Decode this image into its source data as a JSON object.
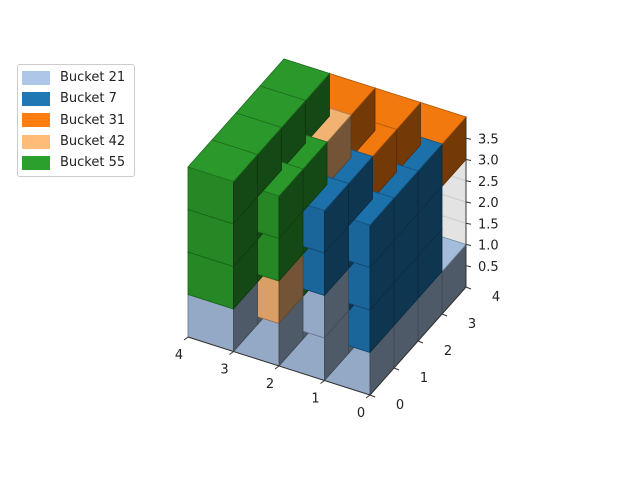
{
  "chart_data": {
    "type": "voxel",
    "title": "",
    "xlabel": "",
    "ylabel": "",
    "zlabel": "",
    "x_ticks": [
      "0",
      "1",
      "2",
      "3",
      "4"
    ],
    "y_ticks": [
      "0",
      "1",
      "2",
      "3",
      "4"
    ],
    "z_ticks": [
      "0.5",
      "1.0",
      "1.5",
      "2.0",
      "2.5",
      "3.0",
      "3.5"
    ],
    "xlim": [
      0,
      4
    ],
    "ylim": [
      0,
      4
    ],
    "zlim": [
      0,
      4
    ],
    "grid": true,
    "legend_position": "top-left",
    "legend": [
      {
        "label": "Bucket 21",
        "color": "#aec7e8"
      },
      {
        "label": "Bucket 7",
        "color": "#1f77b4"
      },
      {
        "label": "Bucket 31",
        "color": "#ff7f0e"
      },
      {
        "label": "Bucket 42",
        "color": "#ffbb78"
      },
      {
        "label": "Bucket 55",
        "color": "#2ca02c"
      }
    ],
    "voxels": [
      {
        "x": 0,
        "y": 0,
        "z": 0,
        "bucket": "Bucket 21"
      },
      {
        "x": 1,
        "y": 0,
        "z": 0,
        "bucket": "Bucket 21"
      },
      {
        "x": 2,
        "y": 0,
        "z": 0,
        "bucket": "Bucket 21"
      },
      {
        "x": 3,
        "y": 0,
        "z": 0,
        "bucket": "Bucket 21"
      },
      {
        "x": 3,
        "y": 1,
        "z": 0,
        "bucket": "Bucket 21"
      },
      {
        "x": 0,
        "y": 1,
        "z": 0,
        "bucket": "Bucket 21"
      },
      {
        "x": 1,
        "y": 1,
        "z": 0,
        "bucket": "Bucket 21"
      },
      {
        "x": 2,
        "y": 1,
        "z": 0,
        "bucket": "Bucket 21"
      },
      {
        "x": 0,
        "y": 2,
        "z": 0,
        "bucket": "Bucket 21"
      },
      {
        "x": 1,
        "y": 2,
        "z": 0,
        "bucket": "Bucket 21"
      },
      {
        "x": 0,
        "y": 3,
        "z": 0,
        "bucket": "Bucket 21"
      },
      {
        "x": 1,
        "y": 3,
        "z": 0,
        "bucket": "Bucket 21"
      },
      {
        "x": 1,
        "y": 0,
        "z": 1,
        "bucket": "Bucket 21"
      },
      {
        "x": 3,
        "y": 2,
        "z": 0,
        "bucket": "Bucket 55"
      },
      {
        "x": 3,
        "y": 3,
        "z": 0,
        "bucket": "Bucket 42"
      },
      {
        "x": 3,
        "y": 3,
        "z": 1,
        "bucket": "Bucket 42"
      },
      {
        "x": 3,
        "y": 2,
        "z": 1,
        "bucket": "Bucket 42"
      },
      {
        "x": 3,
        "y": 3,
        "z": 2,
        "bucket": "Bucket 42"
      },
      {
        "x": 2,
        "y": 0,
        "z": 1,
        "bucket": "Bucket 42"
      },
      {
        "x": 0,
        "y": 0,
        "z": 1,
        "bucket": "Bucket 7"
      },
      {
        "x": 0,
        "y": 0,
        "z": 2,
        "bucket": "Bucket 7"
      },
      {
        "x": 0,
        "y": 0,
        "z": 3,
        "bucket": "Bucket 7"
      },
      {
        "x": 1,
        "y": 0,
        "z": 2,
        "bucket": "Bucket 7"
      },
      {
        "x": 1,
        "y": 0,
        "z": 3,
        "bucket": "Bucket 7"
      },
      {
        "x": 0,
        "y": 1,
        "z": 3,
        "bucket": "Bucket 7"
      },
      {
        "x": 0,
        "y": 2,
        "z": 3,
        "bucket": "Bucket 7"
      },
      {
        "x": 1,
        "y": 1,
        "z": 3,
        "bucket": "Bucket 7"
      },
      {
        "x": 0,
        "y": 1,
        "z": 1,
        "bucket": "Bucket 7"
      },
      {
        "x": 0,
        "y": 1,
        "z": 2,
        "bucket": "Bucket 7"
      },
      {
        "x": 1,
        "y": 1,
        "z": 1,
        "bucket": "Bucket 7"
      },
      {
        "x": 1,
        "y": 1,
        "z": 2,
        "bucket": "Bucket 7"
      },
      {
        "x": 0,
        "y": 2,
        "z": 1,
        "bucket": "Bucket 7"
      },
      {
        "x": 0,
        "y": 2,
        "z": 2,
        "bucket": "Bucket 7"
      },
      {
        "x": 0,
        "y": 3,
        "z": 3,
        "bucket": "Bucket 31"
      },
      {
        "x": 1,
        "y": 3,
        "z": 3,
        "bucket": "Bucket 31"
      },
      {
        "x": 1,
        "y": 2,
        "z": 3,
        "bucket": "Bucket 31"
      },
      {
        "x": 2,
        "y": 3,
        "z": 3,
        "bucket": "Bucket 31"
      },
      {
        "x": 2,
        "y": 2,
        "z": 3,
        "bucket": "Bucket 42"
      },
      {
        "x": 2,
        "y": 0,
        "z": 2,
        "bucket": "Bucket 55"
      },
      {
        "x": 2,
        "y": 0,
        "z": 3,
        "bucket": "Bucket 55"
      },
      {
        "x": 3,
        "y": 0,
        "z": 1,
        "bucket": "Bucket 55"
      },
      {
        "x": 3,
        "y": 0,
        "z": 2,
        "bucket": "Bucket 55"
      },
      {
        "x": 3,
        "y": 0,
        "z": 3,
        "bucket": "Bucket 55"
      },
      {
        "x": 2,
        "y": 1,
        "z": 1,
        "bucket": "Bucket 55"
      },
      {
        "x": 2,
        "y": 1,
        "z": 2,
        "bucket": "Bucket 55"
      },
      {
        "x": 2,
        "y": 1,
        "z": 3,
        "bucket": "Bucket 55"
      },
      {
        "x": 3,
        "y": 1,
        "z": 1,
        "bucket": "Bucket 55"
      },
      {
        "x": 3,
        "y": 1,
        "z": 2,
        "bucket": "Bucket 55"
      },
      {
        "x": 3,
        "y": 1,
        "z": 3,
        "bucket": "Bucket 55"
      },
      {
        "x": 3,
        "y": 2,
        "z": 2,
        "bucket": "Bucket 55"
      },
      {
        "x": 3,
        "y": 2,
        "z": 3,
        "bucket": "Bucket 55"
      },
      {
        "x": 3,
        "y": 3,
        "z": 3,
        "bucket": "Bucket 55"
      }
    ]
  }
}
